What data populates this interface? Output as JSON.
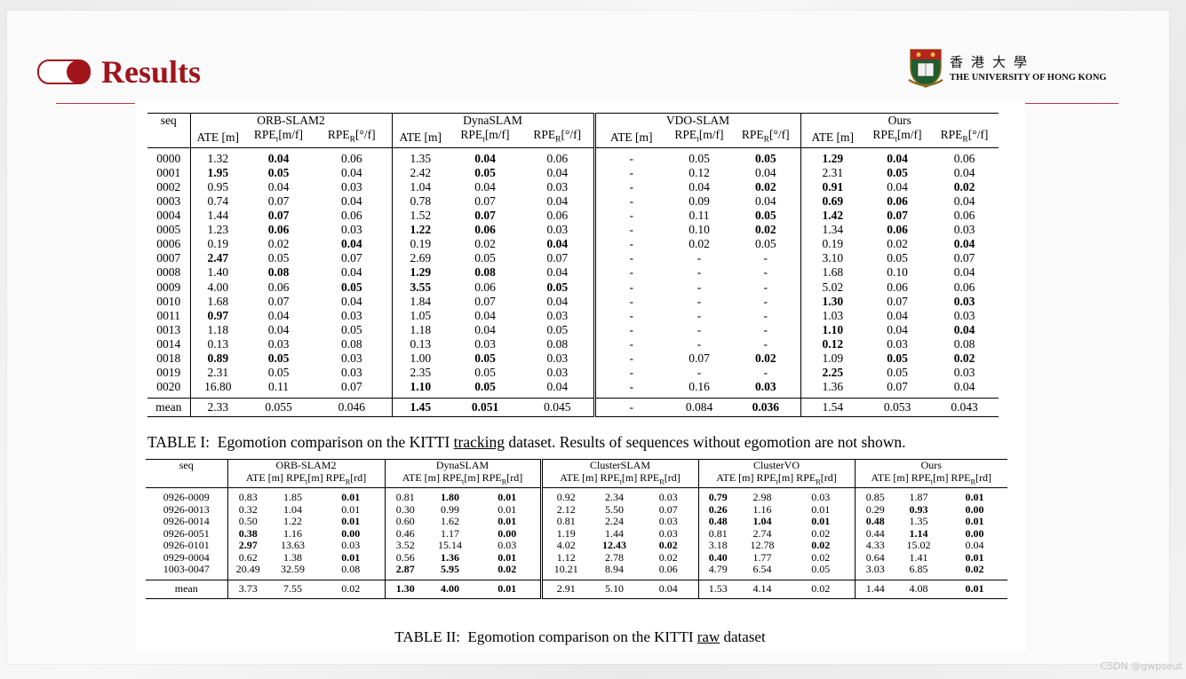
{
  "title": "Results",
  "logo": {
    "chinese": "香港大學",
    "english": "THE UNIVERSITY OF HONG KONG"
  },
  "table1": {
    "seq_header": "seq",
    "groups": [
      "ORB-SLAM2",
      "DynaSLAM",
      "VDO-SLAM",
      "Ours"
    ],
    "metric_headers": [
      "ATE [m]",
      "RPEt[m/f]",
      "RPER[°/f]"
    ],
    "rows": [
      {
        "seq": "0000",
        "v": [
          "1.32",
          "*0.04",
          "0.06",
          "1.35",
          "*0.04",
          "0.06",
          "-",
          "0.05",
          "*0.05",
          "*1.29",
          "*0.04",
          "0.06"
        ]
      },
      {
        "seq": "0001",
        "v": [
          "*1.95",
          "*0.05",
          "0.04",
          "2.42",
          "*0.05",
          "0.04",
          "-",
          "0.12",
          "0.04",
          "2.31",
          "*0.05",
          "0.04"
        ]
      },
      {
        "seq": "0002",
        "v": [
          "0.95",
          "0.04",
          "0.03",
          "1.04",
          "0.04",
          "0.03",
          "-",
          "0.04",
          "*0.02",
          "*0.91",
          "0.04",
          "*0.02"
        ]
      },
      {
        "seq": "0003",
        "v": [
          "0.74",
          "0.07",
          "0.04",
          "0.78",
          "0.07",
          "0.04",
          "-",
          "0.09",
          "0.04",
          "*0.69",
          "*0.06",
          "0.04"
        ]
      },
      {
        "seq": "0004",
        "v": [
          "1.44",
          "*0.07",
          "0.06",
          "1.52",
          "*0.07",
          "0.06",
          "-",
          "0.11",
          "*0.05",
          "*1.42",
          "*0.07",
          "0.06"
        ]
      },
      {
        "seq": "0005",
        "v": [
          "1.23",
          "*0.06",
          "0.03",
          "*1.22",
          "*0.06",
          "0.03",
          "-",
          "0.10",
          "*0.02",
          "1.34",
          "*0.06",
          "0.03"
        ]
      },
      {
        "seq": "0006",
        "v": [
          "0.19",
          "0.02",
          "*0.04",
          "0.19",
          "0.02",
          "*0.04",
          "-",
          "0.02",
          "0.05",
          "0.19",
          "0.02",
          "*0.04"
        ]
      },
      {
        "seq": "0007",
        "v": [
          "*2.47",
          "0.05",
          "0.07",
          "2.69",
          "0.05",
          "0.07",
          "-",
          "-",
          "-",
          "3.10",
          "0.05",
          "0.07"
        ]
      },
      {
        "seq": "0008",
        "v": [
          "1.40",
          "*0.08",
          "0.04",
          "*1.29",
          "*0.08",
          "0.04",
          "-",
          "-",
          "-",
          "1.68",
          "0.10",
          "0.04"
        ]
      },
      {
        "seq": "0009",
        "v": [
          "4.00",
          "0.06",
          "*0.05",
          "*3.55",
          "0.06",
          "*0.05",
          "-",
          "-",
          "-",
          "5.02",
          "0.06",
          "0.06"
        ]
      },
      {
        "seq": "0010",
        "v": [
          "1.68",
          "0.07",
          "0.04",
          "1.84",
          "0.07",
          "0.04",
          "-",
          "-",
          "-",
          "*1.30",
          "0.07",
          "*0.03"
        ]
      },
      {
        "seq": "0011",
        "v": [
          "*0.97",
          "0.04",
          "0.03",
          "1.05",
          "0.04",
          "0.03",
          "-",
          "-",
          "-",
          "1.03",
          "0.04",
          "0.03"
        ]
      },
      {
        "seq": "0013",
        "v": [
          "1.18",
          "0.04",
          "0.05",
          "1.18",
          "0.04",
          "0.05",
          "-",
          "-",
          "-",
          "*1.10",
          "0.04",
          "*0.04"
        ]
      },
      {
        "seq": "0014",
        "v": [
          "0.13",
          "0.03",
          "0.08",
          "0.13",
          "0.03",
          "0.08",
          "-",
          "-",
          "-",
          "*0.12",
          "0.03",
          "0.08"
        ]
      },
      {
        "seq": "0018",
        "v": [
          "*0.89",
          "*0.05",
          "0.03",
          "1.00",
          "*0.05",
          "0.03",
          "-",
          "0.07",
          "*0.02",
          "1.09",
          "*0.05",
          "*0.02"
        ]
      },
      {
        "seq": "0019",
        "v": [
          "2.31",
          "0.05",
          "0.03",
          "2.35",
          "0.05",
          "0.03",
          "-",
          "-",
          "-",
          "*2.25",
          "0.05",
          "0.03"
        ]
      },
      {
        "seq": "0020",
        "v": [
          "16.80",
          "0.11",
          "0.07",
          "*1.10",
          "*0.05",
          "0.04",
          "-",
          "0.16",
          "*0.03",
          "1.36",
          "0.07",
          "0.04"
        ]
      }
    ],
    "mean": {
      "seq": "mean",
      "v": [
        "2.33",
        "0.055",
        "0.046",
        "*1.45",
        "*0.051",
        "0.045",
        "-",
        "0.084",
        "*0.036",
        "1.54",
        "0.053",
        "0.043"
      ]
    },
    "caption": {
      "label": "TABLE I:",
      "pre": "Egomotion comparison on the KITTI",
      "underlined": "tracking",
      "post": "dataset. Results of sequences without egomotion are not shown."
    }
  },
  "table2": {
    "seq_header": "seq",
    "groups": [
      "ORB-SLAM2",
      "DynaSLAM",
      "ClusterSLAM",
      "ClusterVO",
      "Ours"
    ],
    "metric_header": "ATE [m] RPEt[m] RPER[rd]",
    "rows": [
      {
        "seq": "0926-0009",
        "v": [
          "0.83",
          "1.85",
          "*0.01",
          "0.81",
          "*1.80",
          "*0.01",
          "0.92",
          "2.34",
          "0.03",
          "*0.79",
          "2.98",
          "0.03",
          "0.85",
          "1.87",
          "*0.01"
        ]
      },
      {
        "seq": "0926-0013",
        "v": [
          "0.32",
          "1.04",
          "0.01",
          "0.30",
          "0.99",
          "0.01",
          "2.12",
          "5.50",
          "0.07",
          "*0.26",
          "1.16",
          "0.01",
          "0.29",
          "*0.93",
          "*0.00"
        ]
      },
      {
        "seq": "0926-0014",
        "v": [
          "0.50",
          "1.22",
          "*0.01",
          "0.60",
          "1.62",
          "*0.01",
          "0.81",
          "2.24",
          "0.03",
          "*0.48",
          "*1.04",
          "*0.01",
          "*0.48",
          "1.35",
          "*0.01"
        ]
      },
      {
        "seq": "0926-0051",
        "v": [
          "*0.38",
          "1.16",
          "*0.00",
          "0.46",
          "1.17",
          "*0.00",
          "1.19",
          "1.44",
          "0.03",
          "0.81",
          "2.74",
          "0.02",
          "0.44",
          "*1.14",
          "*0.00"
        ]
      },
      {
        "seq": "0926-0101",
        "v": [
          "*2.97",
          "13.63",
          "0.03",
          "3.52",
          "15.14",
          "0.03",
          "4.02",
          "*12.43",
          "*0.02",
          "3.18",
          "12.78",
          "*0.02",
          "4.33",
          "15.02",
          "0.04"
        ]
      },
      {
        "seq": "0929-0004",
        "v": [
          "0.62",
          "1.38",
          "*0.01",
          "0.56",
          "*1.36",
          "*0.01",
          "1.12",
          "2.78",
          "0.02",
          "*0.40",
          "1.77",
          "0.02",
          "0.64",
          "1.41",
          "*0.01"
        ]
      },
      {
        "seq": "1003-0047",
        "v": [
          "20.49",
          "32.59",
          "0.08",
          "*2.87",
          "*5.95",
          "*0.02",
          "10.21",
          "8.94",
          "0.06",
          "4.79",
          "6.54",
          "0.05",
          "3.03",
          "6.85",
          "*0.02"
        ]
      }
    ],
    "mean": {
      "seq": "mean",
      "v": [
        "3.73",
        "7.55",
        "0.02",
        "*1.30",
        "*4.00",
        "*0.01",
        "2.91",
        "5.10",
        "0.04",
        "1.53",
        "4.14",
        "0.02",
        "1.44",
        "4.08",
        "*0.01"
      ]
    },
    "caption": {
      "label": "TABLE II:",
      "pre": "Egomotion comparison on the KITTI",
      "underlined": "raw",
      "post": "dataset"
    }
  },
  "watermark": "CSDN @gwpseut"
}
